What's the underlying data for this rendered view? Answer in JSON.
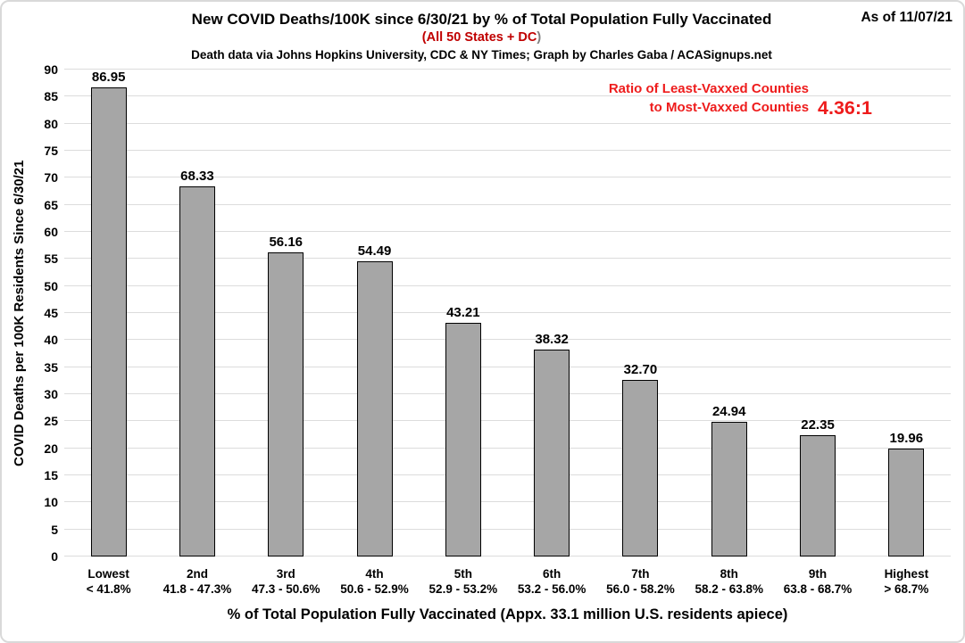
{
  "header": {
    "title": "New COVID Deaths/100K since 6/30/21 by % of Total Population Fully Vaccinated",
    "as_of": "As of 11/07/21",
    "subtitle": "(All 50 States + DC",
    "subtitle_close": ")",
    "credit": "Death data via Johns Hopkins University, CDC & NY Times; Graph by Charles Gaba / ACASignups.net"
  },
  "annotation": {
    "line1": "Ratio of Least-Vaxxed Counties",
    "line2": "to Most-Vaxxed Counties",
    "ratio": "4.36:1"
  },
  "colors": {
    "bar_fill": "#a6a6a6",
    "bar_border": "#000000",
    "gridline": "#dcdcdc",
    "subtitle_red": "#c00000",
    "annotation_red": "#ee1c1c"
  },
  "chart_data": {
    "type": "bar",
    "title": "New COVID Deaths/100K since 6/30/21 by % of Total Population Fully Vaccinated",
    "subtitle": "(All 50 States + DC)",
    "xlabel": "% of Total Population Fully Vaccinated (Appx. 33.1 million U.S. residents apiece)",
    "ylabel": "COVID Deaths per 100K Residents Since 6/30/21",
    "ylim": [
      0,
      90
    ],
    "ytick_step": 5,
    "grid": true,
    "legend_position": "none",
    "categories": [
      "Lowest",
      "2nd",
      "3rd",
      "4th",
      "5th",
      "6th",
      "7th",
      "8th",
      "9th",
      "Highest"
    ],
    "category_ranges": [
      "< 41.8%",
      "41.8 - 47.3%",
      "47.3 - 50.6%",
      "50.6 - 52.9%",
      "52.9 - 53.2%",
      "53.2 - 56.0%",
      "56.0 - 58.2%",
      "58.2 - 63.8%",
      "63.8 - 68.7%",
      "> 68.7%"
    ],
    "values": [
      86.95,
      68.33,
      56.16,
      54.49,
      43.21,
      38.32,
      32.7,
      24.94,
      22.35,
      19.96
    ],
    "value_labels": [
      "86.95",
      "68.33",
      "56.16",
      "54.49",
      "43.21",
      "38.32",
      "32.70",
      "24.94",
      "22.35",
      "19.96"
    ],
    "annotation_ratio": "4.36:1"
  }
}
